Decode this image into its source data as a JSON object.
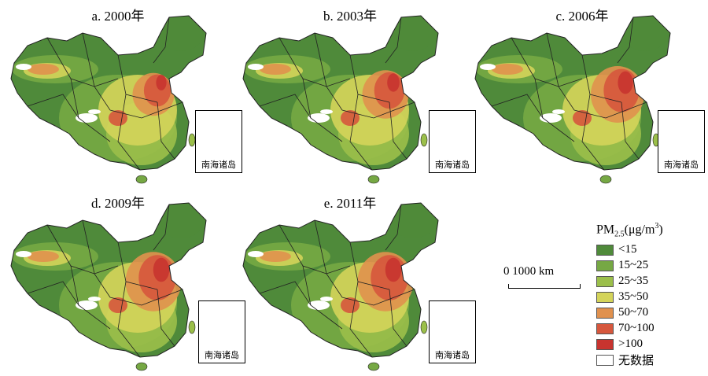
{
  "panels": [
    {
      "title": "a. 2000年",
      "intensity": 0.55
    },
    {
      "title": "b. 2003年",
      "intensity": 0.65
    },
    {
      "title": "c. 2006年",
      "intensity": 0.8
    },
    {
      "title": "d. 2009年",
      "intensity": 0.85
    },
    {
      "title": "e. 2011年",
      "intensity": 0.85
    }
  ],
  "inset_label": "南海诸岛",
  "legend": {
    "title_main": "PM",
    "title_sub": "2.5",
    "title_unit": "(μg/m",
    "title_sup": "3",
    "title_close": ")",
    "items": [
      {
        "label": "<15",
        "color": "#4f8a3a"
      },
      {
        "label": "15~25",
        "color": "#76a844"
      },
      {
        "label": "25~35",
        "color": "#9bbf4a"
      },
      {
        "label": "35~50",
        "color": "#d4d45a"
      },
      {
        "label": "50~70",
        "color": "#e0914e"
      },
      {
        "label": "70~100",
        "color": "#d6573d"
      },
      {
        "label": ">100",
        "color": "#c8342f"
      },
      {
        "label": "无数据",
        "color": "#ffffff"
      }
    ]
  },
  "scale": {
    "text": "0   1000 km"
  }
}
